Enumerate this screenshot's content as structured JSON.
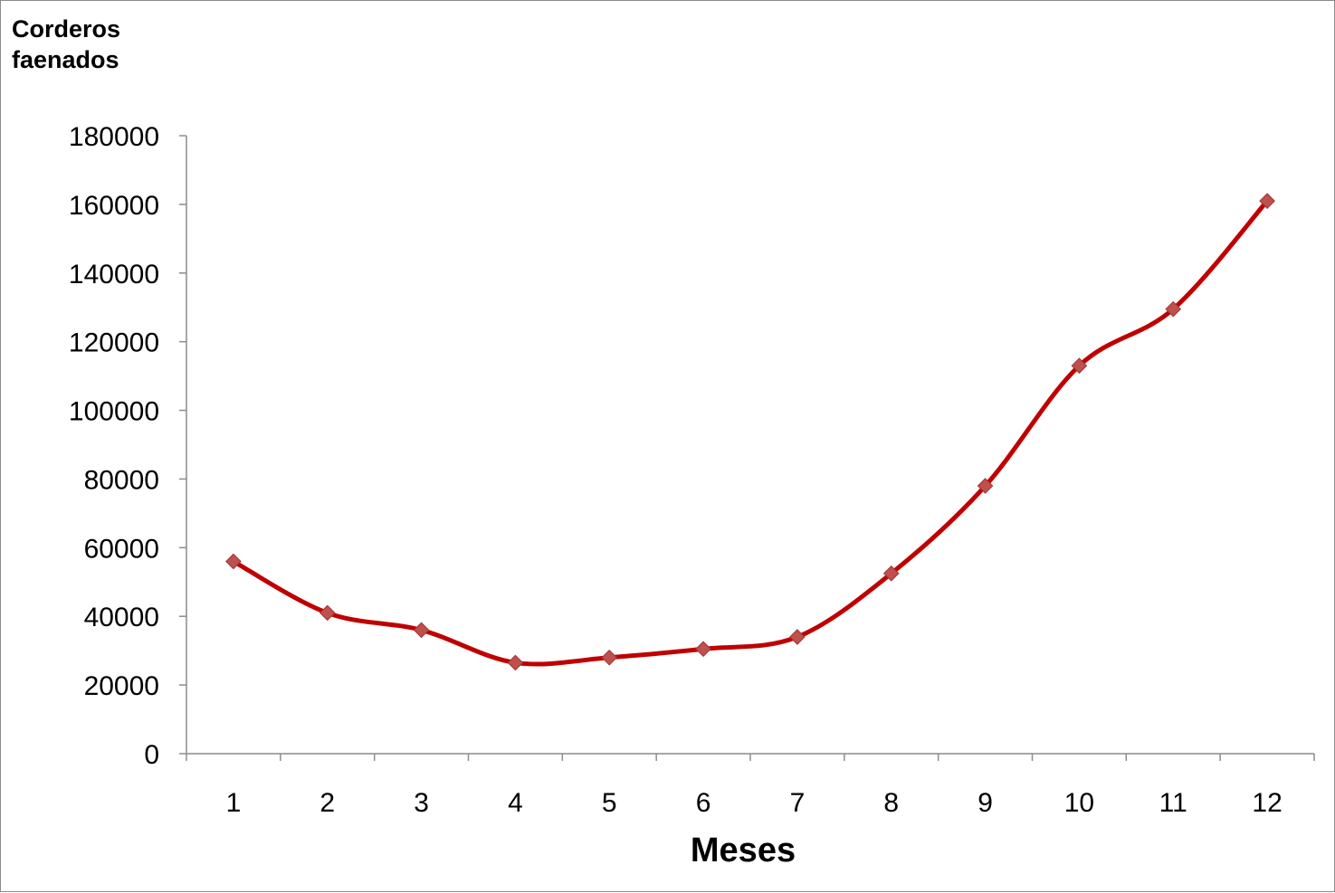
{
  "chart_data": {
    "type": "line",
    "title": "",
    "ylabel_lines": [
      "Corderos",
      "faenados"
    ],
    "xlabel": "Meses",
    "categories": [
      "1",
      "2",
      "3",
      "4",
      "5",
      "6",
      "7",
      "8",
      "9",
      "10",
      "11",
      "12"
    ],
    "series": [
      {
        "values": [
          56000,
          41000,
          36000,
          26500,
          28000,
          30500,
          34000,
          52500,
          78000,
          113000,
          129500,
          161000
        ],
        "color": "#c00000",
        "marker_color": "#c0504d",
        "marker": "diamond",
        "smooth": true
      }
    ],
    "ylim": [
      0,
      180000
    ],
    "yticks": [
      "0",
      "20000",
      "40000",
      "60000",
      "80000",
      "100000",
      "120000",
      "140000",
      "160000",
      "180000"
    ],
    "grid": false,
    "legend": "none"
  }
}
